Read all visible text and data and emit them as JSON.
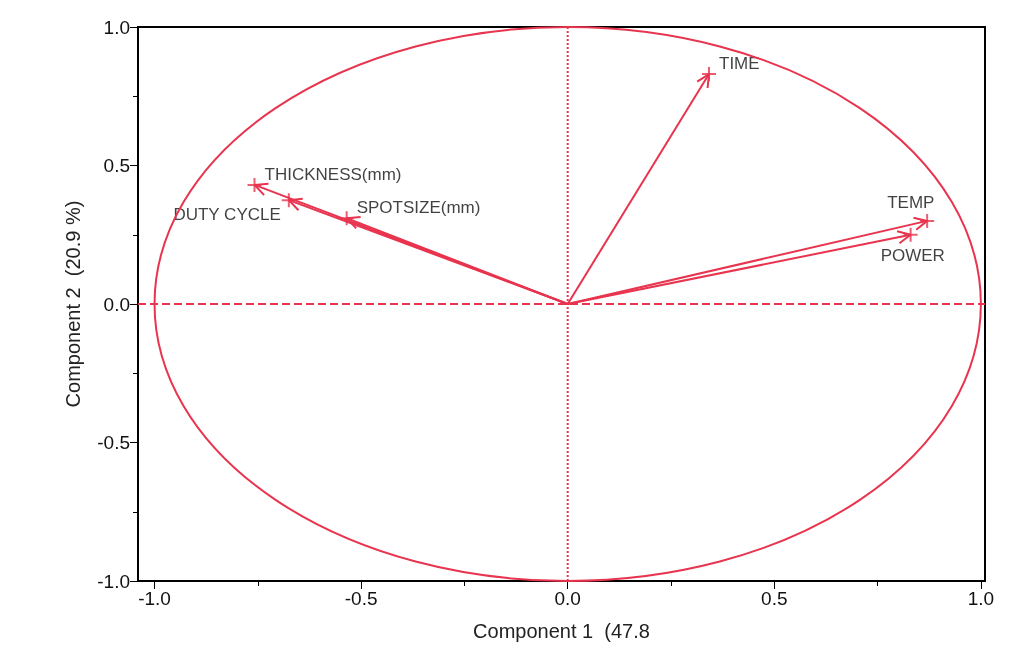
{
  "chart_data": {
    "type": "scatter",
    "xlabel": "Component 1  (47.8",
    "ylabel": "Component 2  (20.9 %)",
    "xlim": [
      -1.04,
      1.01
    ],
    "ylim": [
      -1.0,
      1.0
    ],
    "xticks": [
      {
        "value": -1,
        "label": "-1.0"
      },
      -0.5,
      {
        "value": 0,
        "label": "0.0"
      },
      0.5,
      {
        "value": 1,
        "label": "1.0"
      }
    ],
    "yticks": [
      {
        "value": -1,
        "label": "-1.0"
      },
      -0.5,
      {
        "value": 0,
        "label": "0.0"
      },
      0.5,
      {
        "value": 1,
        "label": "1.0"
      }
    ],
    "marker": "cross",
    "grid": false,
    "series": [
      {
        "color": "#e8344e",
        "x": [
          0.342,
          -0.758,
          -0.675,
          -0.535,
          0.87,
          0.83
        ],
        "values": [
          0.83,
          0.43,
          0.375,
          0.31,
          0.3,
          0.25
        ]
      }
    ],
    "ref_lines": [
      {
        "axis": "x",
        "value": 0,
        "color": "#e8344e",
        "line_style": "dotted"
      },
      {
        "axis": "y",
        "value": 0,
        "color": "#e8344e",
        "line_style": "dashed"
      }
    ],
    "annotations": [
      {
        "text": "TIME",
        "x": 0.342,
        "y": 0.83
      },
      {
        "text": "THICKNESS(mm)",
        "x": -0.758,
        "y": 0.43
      },
      {
        "text": "DUTY CYCLE",
        "x": -0.675,
        "y": 0.375
      },
      {
        "text": "SPOTSIZE(mm)",
        "x": -0.535,
        "y": 0.31
      },
      {
        "text": "TEMP",
        "x": 0.87,
        "y": 0.3
      },
      {
        "text": "POWER",
        "x": 0.83,
        "y": 0.25
      }
    ]
  }
}
